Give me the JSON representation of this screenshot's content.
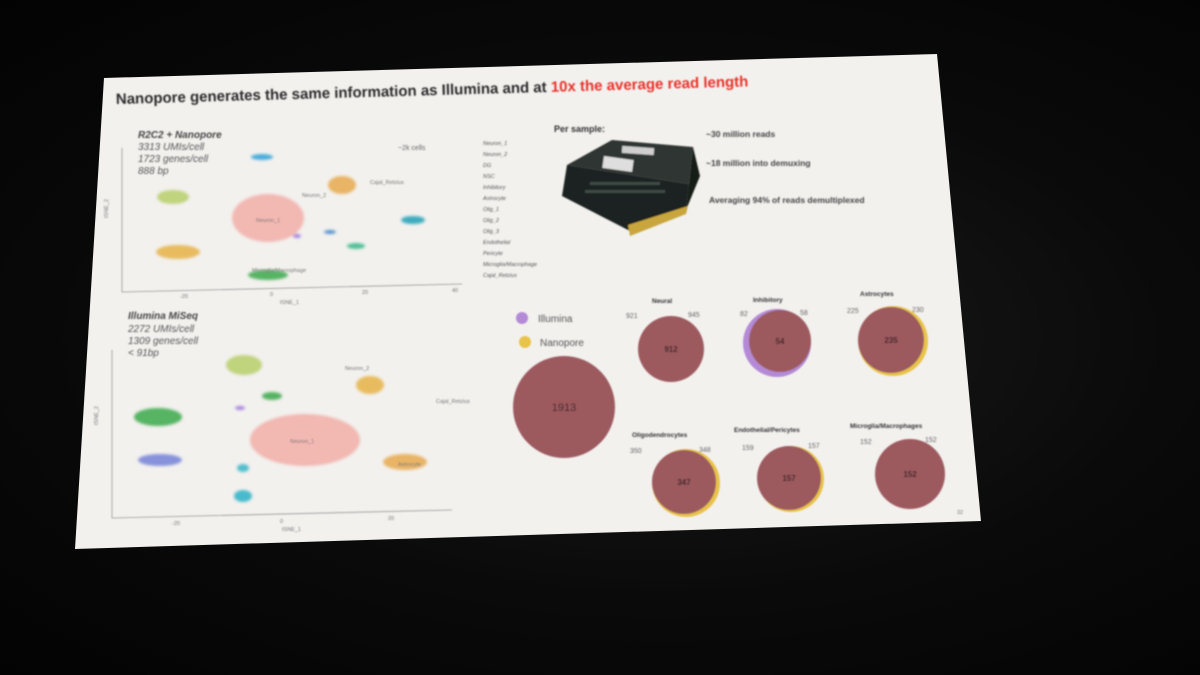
{
  "slide": {
    "title_main": "Nanopore generates the same information as Illumina and at ",
    "title_highlight": "10x the average read length",
    "page_number": "32"
  },
  "plot_top": {
    "heading": "R2C2 + Nanopore",
    "stats": [
      "3313 UMIs/cell",
      "1723 genes/cell",
      "888 bp"
    ],
    "cells_note": "~2k cells",
    "x_label": "tSNE_1",
    "y_label": "tSNE_2",
    "x_ticks": [
      "-20",
      "0",
      "20",
      "40"
    ],
    "cluster_labels": [
      "Neuron_1",
      "Neuron_2",
      "Cajal_Retzius",
      "Microglia/Macrophage"
    ]
  },
  "plot_bottom": {
    "heading": "Illumina MiSeq",
    "stats": [
      "2272 UMIs/cell",
      "1309 genes/cell",
      "< 91bp"
    ],
    "x_label": "tSNE_1",
    "y_label": "tSNE_2",
    "x_ticks": [
      "-20",
      "0",
      "20"
    ],
    "cluster_labels": [
      "Neuron_1",
      "Neuron_2",
      "Cajal_Retzius",
      "Astrocyte"
    ]
  },
  "cell_types": [
    "Neuron_1",
    "Neuron_2",
    "DG",
    "NSC",
    "Inhibitory",
    "Astrocyte",
    "Olig_1",
    "Olig_2",
    "Olig_3",
    "Endothelial",
    "Pericyte",
    "Microglia/Macrophage",
    "Cajal_Retzius"
  ],
  "per_sample": {
    "title": "Per sample:",
    "bullets": [
      "~30 million reads",
      "~18 million into demuxing",
      "Averaging 94% of reads demultiplexed"
    ]
  },
  "legend": {
    "illumina": "Illumina",
    "nanopore": "Nanopore"
  },
  "overlap": {
    "total": "1913",
    "groups": [
      {
        "name": "Neural",
        "left": "921",
        "right": "945",
        "shared": "912"
      },
      {
        "name": "Inhibitory",
        "left": "82",
        "right": "58",
        "shared": "54"
      },
      {
        "name": "Astrocytes",
        "left": "225",
        "right": "230",
        "shared": "235"
      },
      {
        "name": "Oligodendrocytes",
        "left": "350",
        "right": "348",
        "shared": "347"
      },
      {
        "name": "Endothelial/Pericytes",
        "left": "159",
        "right": "157",
        "shared": "157"
      },
      {
        "name": "Microglia/Macrophages",
        "left": "152",
        "right": "152",
        "shared": "152"
      }
    ]
  },
  "colors": {
    "title_highlight": "#e8302a",
    "illumina": "#b48ad6",
    "nanopore": "#e8c34a",
    "overlap_fill": "#9c5a5e"
  }
}
